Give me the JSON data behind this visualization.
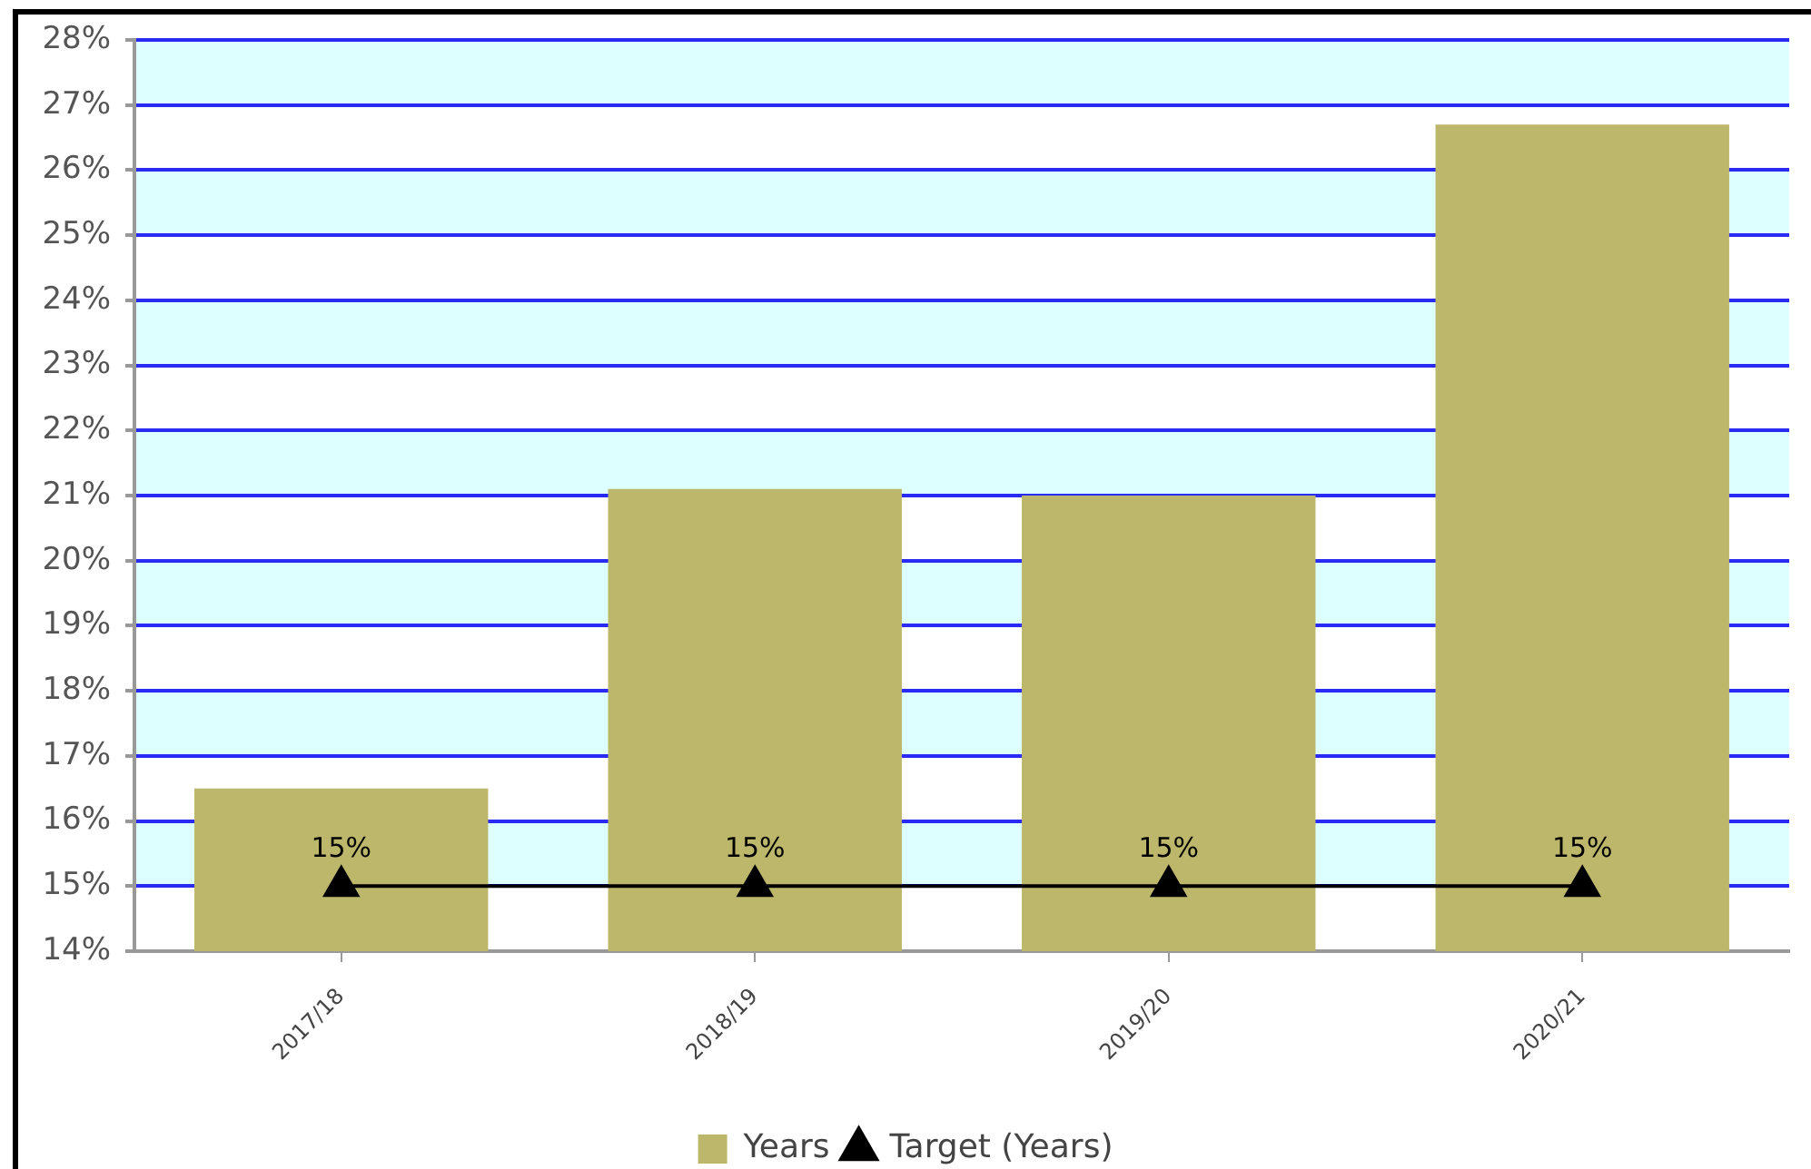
{
  "chart_data": {
    "type": "bar",
    "categories": [
      "2017/18",
      "2018/19",
      "2019/20",
      "2020/21"
    ],
    "series": [
      {
        "name": "Years",
        "color": "#bdb76b",
        "values": [
          16.5,
          21.1,
          21.0,
          26.7
        ]
      },
      {
        "name": "Target (Years)",
        "type": "line",
        "color": "#000000",
        "values": [
          15,
          15,
          15,
          15
        ],
        "value_labels": [
          "15%",
          "15%",
          "15%",
          "15%"
        ]
      }
    ],
    "ylim": [
      14,
      28
    ],
    "yticks": [
      {
        "value": 14,
        "label": "14%"
      },
      {
        "value": 15,
        "label": "15%"
      },
      {
        "value": 16,
        "label": "16%"
      },
      {
        "value": 17,
        "label": "17%"
      },
      {
        "value": 18,
        "label": "18%"
      },
      {
        "value": 19,
        "label": "19%"
      },
      {
        "value": 20,
        "label": "20%"
      },
      {
        "value": 21,
        "label": "21%"
      },
      {
        "value": 22,
        "label": "22%"
      },
      {
        "value": 23,
        "label": "23%"
      },
      {
        "value": 24,
        "label": "24%"
      },
      {
        "value": 25,
        "label": "25%"
      },
      {
        "value": 26,
        "label": "26%"
      },
      {
        "value": 27,
        "label": "27%"
      },
      {
        "value": 28,
        "label": "28%"
      }
    ],
    "grid": "y",
    "legend": "bottom",
    "marker": "triangle"
  }
}
